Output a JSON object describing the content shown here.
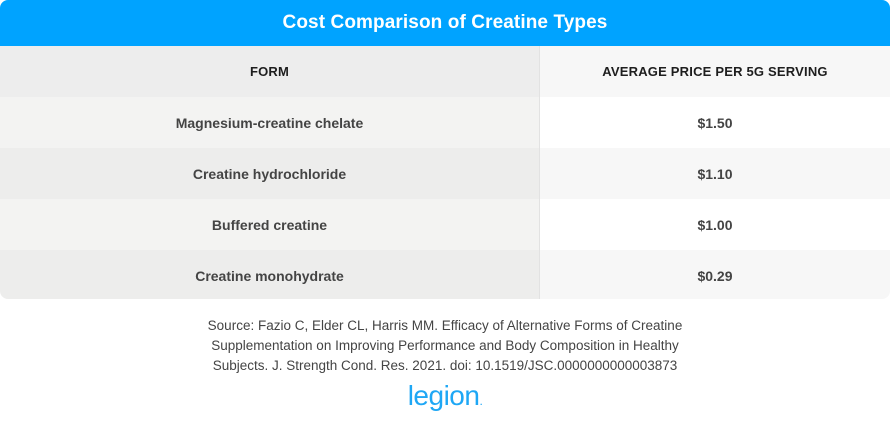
{
  "title": "Cost Comparison of Creatine Types",
  "table": {
    "headers": {
      "form": "FORM",
      "price": "AVERAGE PRICE PER 5G SERVING"
    },
    "rows": [
      {
        "form": "Magnesium-creatine chelate",
        "price": "$1.50"
      },
      {
        "form": "Creatine hydrochloride",
        "price": "$1.10"
      },
      {
        "form": "Buffered creatine",
        "price": "$1.00"
      },
      {
        "form": "Creatine monohydrate",
        "price": "$0.29"
      }
    ]
  },
  "source": {
    "line1": "Source: Fazio C, Elder CL, Harris MM. Efficacy of Alternative Forms of Creatine",
    "line2": "Supplementation on Improving Performance and Body Composition in Healthy",
    "line3": "Subjects. J. Strength Cond. Res. 2021. doi: 10.1519/JSC.0000000000003873"
  },
  "logo": {
    "text": "legion",
    "dot": "."
  },
  "colors": {
    "accent": "#00a3ff",
    "logo": "#1ea7f5"
  }
}
